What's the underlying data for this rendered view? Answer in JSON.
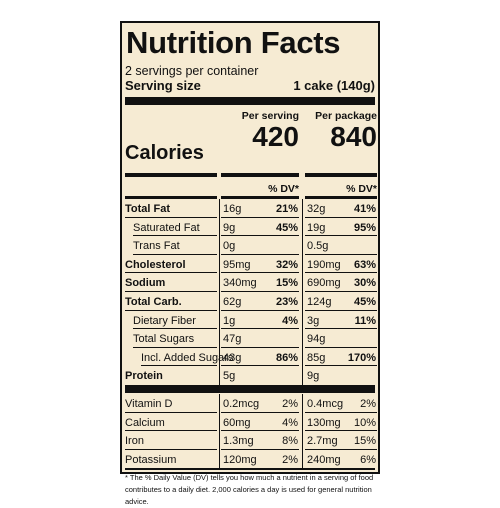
{
  "title": "Nutrition Facts",
  "servings_per_container": "2 servings per container",
  "serving_size_label": "Serving size",
  "serving_size_value": "1 cake (140g)",
  "calories_label": "Calories",
  "per_serving_label": "Per serving",
  "per_package_label": "Per package",
  "calories_per_serving": "420",
  "calories_per_package": "840",
  "dv_header": "% DV*",
  "nutrients": [
    {
      "name": "Total Fat",
      "bold": true,
      "indent": 0,
      "s_amt": "16g",
      "s_dv": "21%",
      "p_amt": "32g",
      "p_dv": "41%"
    },
    {
      "name": "Saturated Fat",
      "bold": false,
      "indent": 1,
      "s_amt": "9g",
      "s_dv": "45%",
      "p_amt": "19g",
      "p_dv": "95%"
    },
    {
      "name": "Trans Fat",
      "bold": false,
      "indent": 1,
      "s_amt": "0g",
      "s_dv": "",
      "p_amt": "0.5g",
      "p_dv": ""
    },
    {
      "name": "Cholesterol",
      "bold": true,
      "indent": 0,
      "s_amt": "95mg",
      "s_dv": "32%",
      "p_amt": "190mg",
      "p_dv": "63%"
    },
    {
      "name": "Sodium",
      "bold": true,
      "indent": 0,
      "s_amt": "340mg",
      "s_dv": "15%",
      "p_amt": "690mg",
      "p_dv": "30%"
    },
    {
      "name": "Total Carb.",
      "bold": true,
      "indent": 0,
      "s_amt": "62g",
      "s_dv": "23%",
      "p_amt": "124g",
      "p_dv": "45%"
    },
    {
      "name": "Dietary Fiber",
      "bold": false,
      "indent": 1,
      "s_amt": "1g",
      "s_dv": "4%",
      "p_amt": "3g",
      "p_dv": "11%"
    },
    {
      "name": "Total Sugars",
      "bold": false,
      "indent": 1,
      "s_amt": "47g",
      "s_dv": "",
      "p_amt": "94g",
      "p_dv": ""
    },
    {
      "name": "Incl. Added Sugars",
      "bold": false,
      "indent": 2,
      "s_amt": "43g",
      "s_dv": "86%",
      "p_amt": "85g",
      "p_dv": "170%"
    },
    {
      "name": "Protein",
      "bold": true,
      "indent": 0,
      "s_amt": "5g",
      "s_dv": "",
      "p_amt": "9g",
      "p_dv": ""
    }
  ],
  "vitamins": [
    {
      "name": "Vitamin D",
      "s_amt": "0.2mcg",
      "s_dv": "2%",
      "p_amt": "0.4mcg",
      "p_dv": "2%"
    },
    {
      "name": "Calcium",
      "s_amt": "60mg",
      "s_dv": "4%",
      "p_amt": "130mg",
      "p_dv": "10%"
    },
    {
      "name": "Iron",
      "s_amt": "1.3mg",
      "s_dv": "8%",
      "p_amt": "2.7mg",
      "p_dv": "15%"
    },
    {
      "name": "Potassium",
      "s_amt": "120mg",
      "s_dv": "2%",
      "p_amt": "240mg",
      "p_dv": "6%"
    }
  ],
  "footnote": "* The % Daily Value (DV) tells you how much a nutrient in a serving of food contributes to a daily diet. 2,000 calories a day is used for general nutrition advice.",
  "colors": {
    "background": "#f6ebd3",
    "ink": "#111111"
  }
}
